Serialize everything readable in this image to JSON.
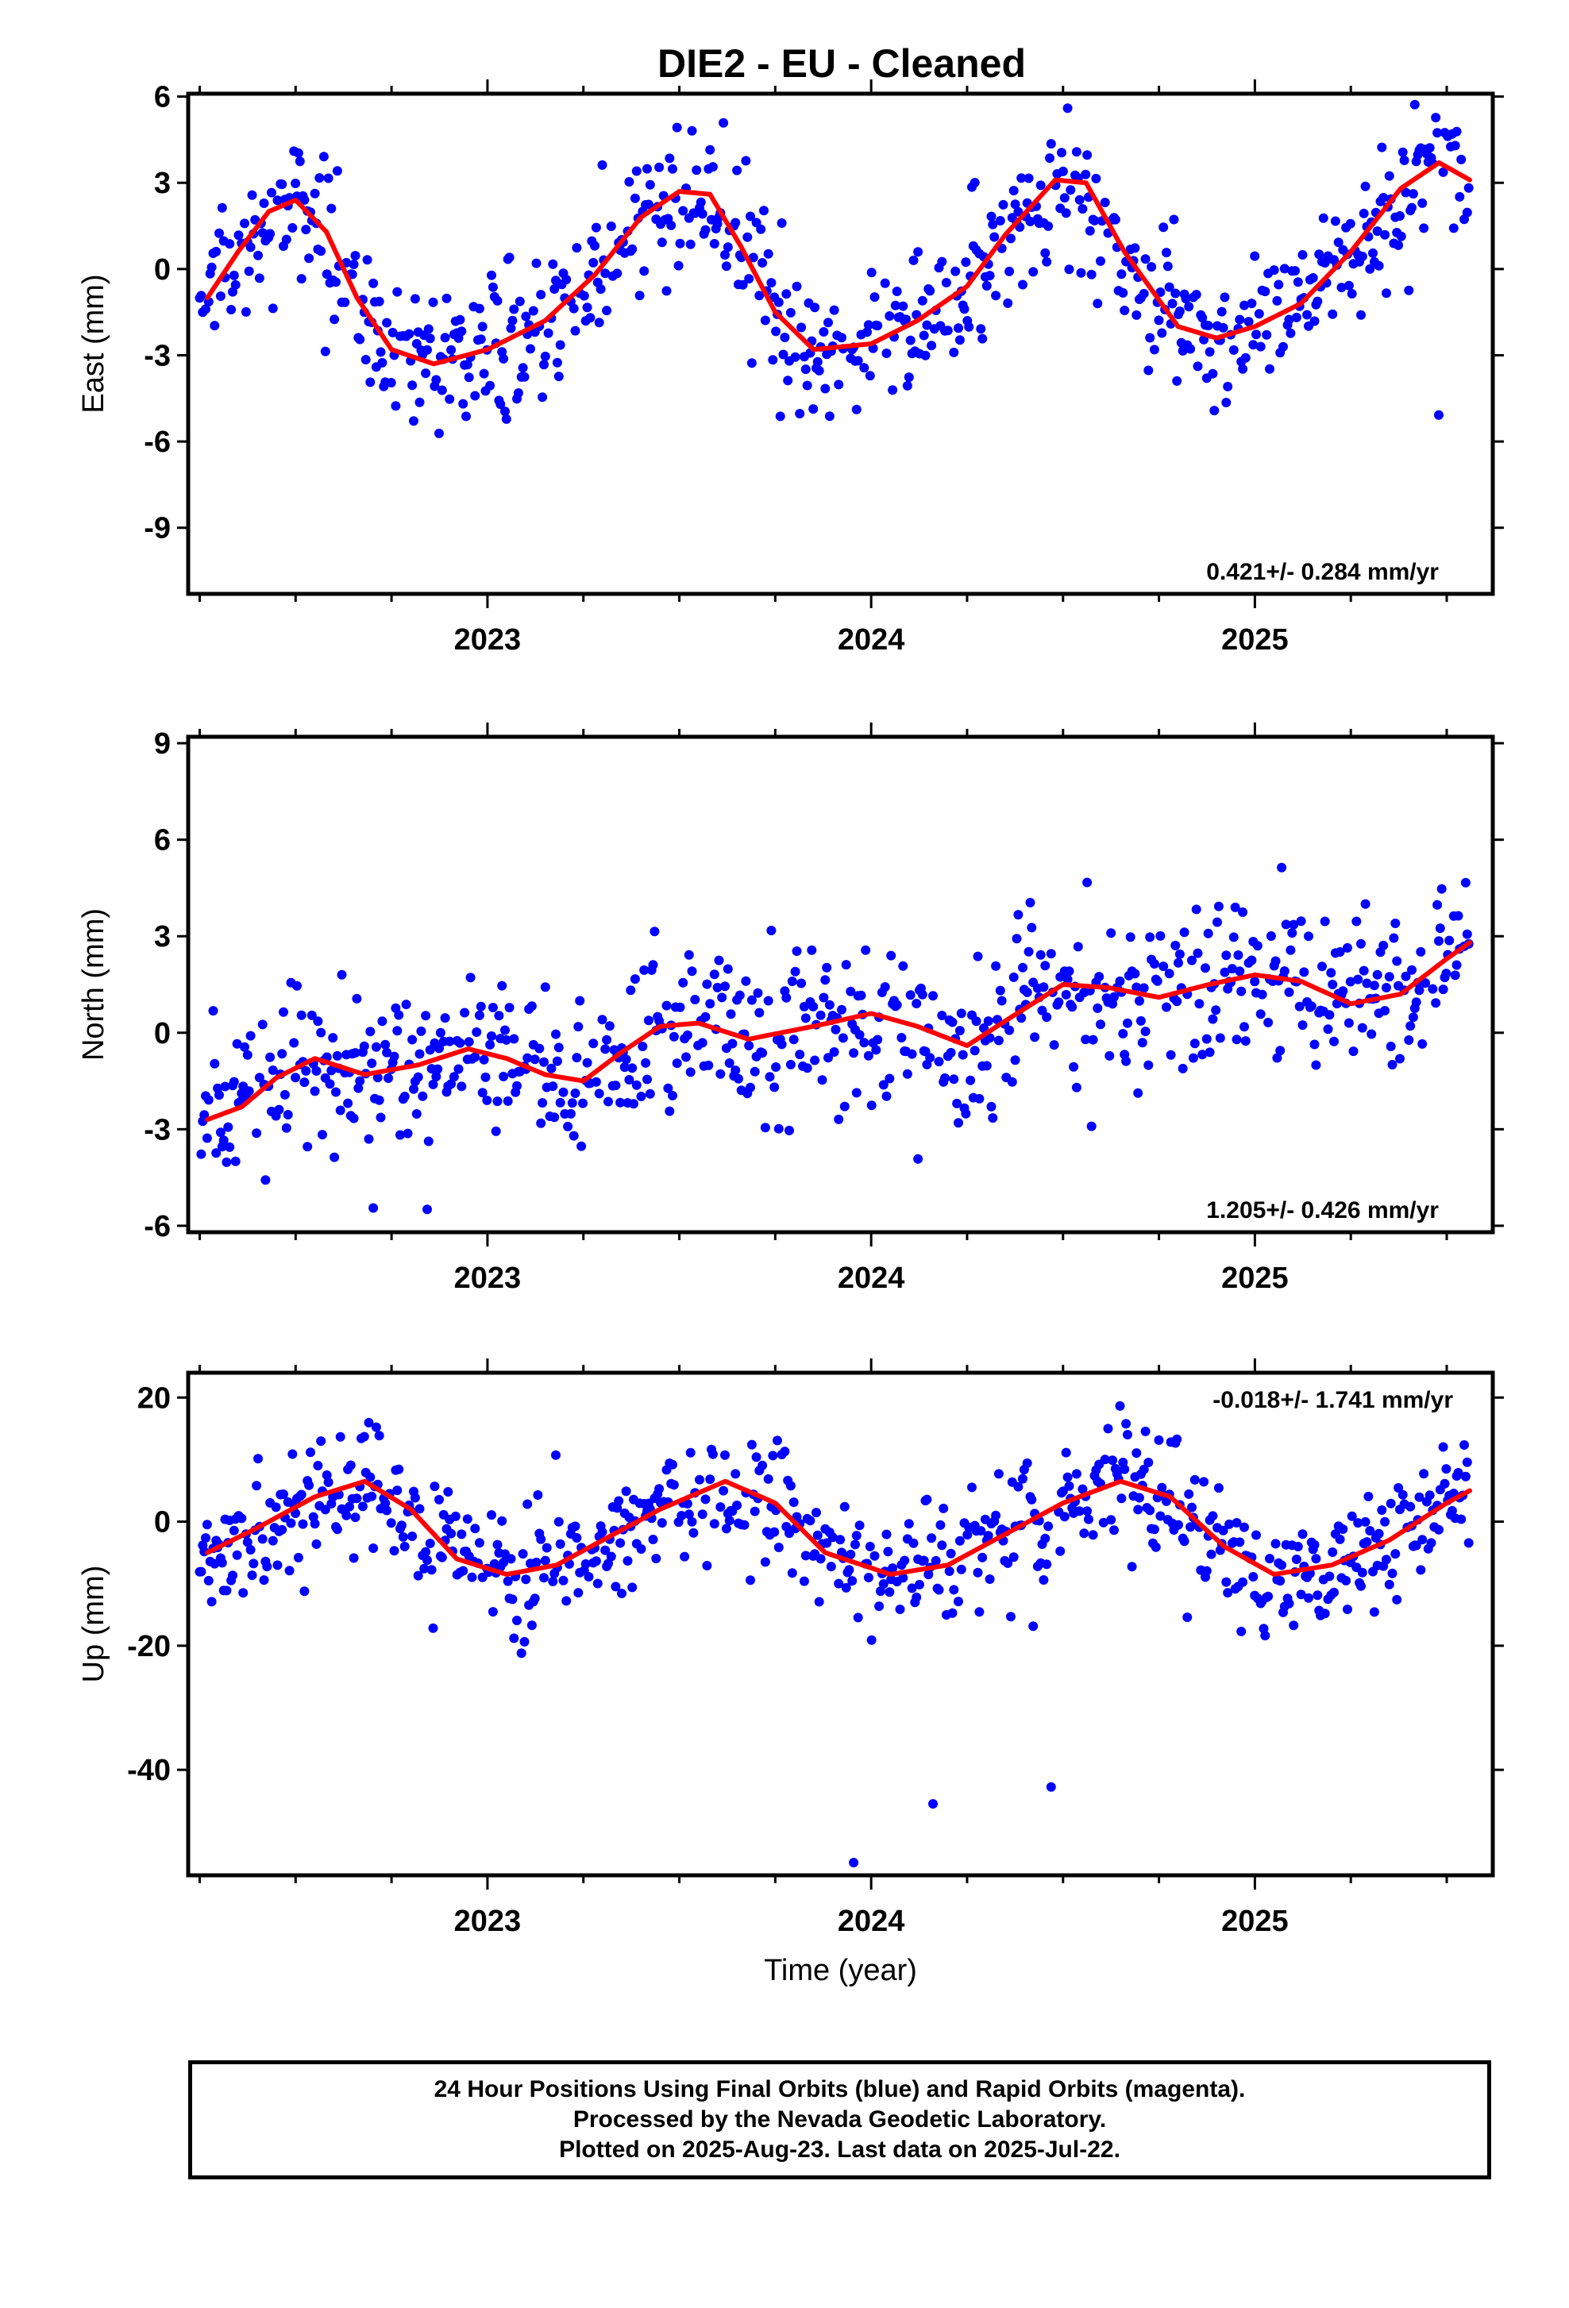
{
  "figure_title": "DIE2  - EU - Cleaned",
  "footer": {
    "line1": "24 Hour Positions Using Final Orbits (blue) and Rapid Orbits (magenta).",
    "line2": "Processed by the Nevada Geodetic Laboratory.",
    "line3": "Plotted on 2025-Aug-23. Last data on 2025-Jul-22."
  },
  "colors": {
    "observed": "#0000ff",
    "model": "#ff0000",
    "frame": "#000000"
  },
  "chart_data": [
    {
      "type": "scatter",
      "ylabel": "East (mm)",
      "xlabel": "",
      "xlim": [
        2022.22,
        2025.62
      ],
      "ylim": [
        -11.3,
        6.1
      ],
      "yticks": [
        6,
        3,
        0,
        -3,
        -6,
        -9
      ],
      "xticks": [
        2023,
        2024,
        2025
      ],
      "rate_text": "0.421+/- 0.284 mm/yr",
      "model": {
        "x": [
          2022.27,
          2022.35,
          2022.43,
          2022.5,
          2022.58,
          2022.66,
          2022.75,
          2022.86,
          2023.0,
          2023.15,
          2023.28,
          2023.4,
          2023.5,
          2023.58,
          2023.66,
          2023.75,
          2023.85,
          2024.0,
          2024.12,
          2024.25,
          2024.35,
          2024.48,
          2024.56,
          2024.66,
          2024.8,
          2024.9,
          2025.0,
          2025.12,
          2025.25,
          2025.38,
          2025.48,
          2025.56
        ],
        "y": [
          -1.0,
          0.6,
          2.0,
          2.4,
          1.3,
          -1.0,
          -2.8,
          -3.3,
          -2.8,
          -1.8,
          -0.2,
          1.8,
          2.7,
          2.6,
          0.8,
          -1.5,
          -2.8,
          -2.6,
          -1.8,
          -0.6,
          1.2,
          3.1,
          3.0,
          0.6,
          -2.0,
          -2.4,
          -2.0,
          -1.2,
          0.6,
          2.8,
          3.7,
          3.1
        ]
      }
    },
    {
      "type": "scatter",
      "ylabel": "North (mm)",
      "xlabel": "",
      "xlim": [
        2022.22,
        2025.62
      ],
      "ylim": [
        -6.2,
        9.2
      ],
      "yticks": [
        9,
        6,
        3,
        0,
        -3,
        -6
      ],
      "xticks": [
        2023,
        2024,
        2025
      ],
      "rate_text": "1.205+/- 0.426 mm/yr",
      "model": {
        "x": [
          2022.27,
          2022.36,
          2022.45,
          2022.55,
          2022.68,
          2022.82,
          2022.95,
          2023.05,
          2023.15,
          2023.25,
          2023.35,
          2023.45,
          2023.55,
          2023.68,
          2023.85,
          2024.0,
          2024.12,
          2024.25,
          2024.38,
          2024.5,
          2024.62,
          2024.75,
          2024.88,
          2025.0,
          2025.12,
          2025.25,
          2025.38,
          2025.5,
          2025.56
        ],
        "y": [
          -2.7,
          -2.3,
          -1.4,
          -0.8,
          -1.3,
          -1.0,
          -0.5,
          -0.8,
          -1.3,
          -1.5,
          -0.6,
          0.2,
          0.3,
          -0.2,
          0.2,
          0.6,
          0.2,
          -0.4,
          0.6,
          1.5,
          1.4,
          1.1,
          1.5,
          1.8,
          1.6,
          0.9,
          1.2,
          2.3,
          2.8
        ]
      }
    },
    {
      "type": "scatter",
      "ylabel": "Up (mm)",
      "xlabel": "Time (year)",
      "xlim": [
        2022.22,
        2025.62
      ],
      "ylim": [
        -57,
        24
      ],
      "yticks": [
        20,
        0,
        -20,
        -40
      ],
      "xticks": [
        2023,
        2024,
        2025
      ],
      "rate_text": "-0.018+/- 1.741 mm/yr",
      "model": {
        "x": [
          2022.27,
          2022.4,
          2022.55,
          2022.68,
          2022.8,
          2022.92,
          2023.05,
          2023.18,
          2023.3,
          2023.45,
          2023.62,
          2023.75,
          2023.88,
          2024.05,
          2024.2,
          2024.35,
          2024.5,
          2024.65,
          2024.78,
          2024.92,
          2025.05,
          2025.2,
          2025.35,
          2025.5,
          2025.56
        ],
        "y": [
          -5,
          -1,
          4,
          6.5,
          2,
          -6,
          -8.5,
          -7,
          -3,
          2,
          6.5,
          3,
          -5,
          -8.5,
          -7,
          -2,
          3,
          6.5,
          4,
          -4,
          -8.5,
          -7,
          -3,
          3,
          5
        ]
      }
    }
  ]
}
